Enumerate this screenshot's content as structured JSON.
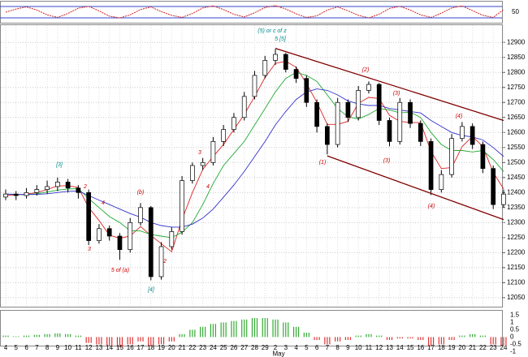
{
  "chart_data": [
    {
      "type": "oscillator",
      "values": [
        50,
        62,
        70,
        58,
        40,
        30,
        45,
        65,
        72,
        55,
        35,
        28,
        40,
        60,
        70,
        52,
        38,
        30,
        45,
        66,
        74,
        60,
        42,
        32,
        48,
        68,
        75,
        62,
        44,
        30,
        36,
        58,
        70,
        55,
        38,
        28,
        42,
        64,
        72,
        58,
        40,
        30,
        46,
        66,
        74,
        56,
        38,
        30,
        60
      ],
      "color": "#cc2222",
      "ylim": [
        10,
        90
      ],
      "yticks": [
        50
      ]
    },
    {
      "type": "candlestick",
      "categories": [
        "4",
        "5",
        "6",
        "7",
        "8",
        "9",
        "10",
        "11",
        "12",
        "13",
        "14",
        "15",
        "16",
        "17",
        "18",
        "19",
        "20",
        "21",
        "22",
        "23",
        "24",
        "25",
        "26",
        "27",
        "28",
        "29",
        "2",
        "3",
        "4",
        "5",
        "6",
        "7",
        "8",
        "9",
        "10",
        "11",
        "12",
        "13",
        "14",
        "15",
        "16",
        "17",
        "18",
        "19",
        "20",
        "21",
        "22",
        "23",
        "24"
      ],
      "month_label": "May",
      "open": [
        12385,
        12395,
        12390,
        12400,
        12410,
        12420,
        12435,
        12415,
        12400,
        12240,
        12280,
        12255,
        12210,
        12300,
        12350,
        12120,
        12220,
        12270,
        12440,
        12490,
        12500,
        12570,
        12610,
        12650,
        12720,
        12790,
        12840,
        12860,
        12810,
        12780,
        12700,
        12620,
        12560,
        12700,
        12650,
        12740,
        12760,
        12640,
        12570,
        12700,
        12630,
        12570,
        12410,
        12460,
        12580,
        12620,
        12560,
        12480,
        12360
      ],
      "high": [
        12410,
        12405,
        12415,
        12425,
        12440,
        12450,
        12445,
        12425,
        12410,
        12295,
        12290,
        12265,
        12315,
        12365,
        12355,
        12235,
        12285,
        12455,
        12500,
        12515,
        12585,
        12625,
        12665,
        12735,
        12805,
        12855,
        12878,
        12865,
        12820,
        12790,
        12710,
        12630,
        12715,
        12710,
        12755,
        12770,
        12765,
        12650,
        12715,
        12710,
        12640,
        12580,
        12475,
        12595,
        12635,
        12630,
        12570,
        12490,
        12410
      ],
      "low": [
        12375,
        12375,
        12380,
        12390,
        12395,
        12405,
        12400,
        12380,
        12225,
        12230,
        12240,
        12176,
        12200,
        12290,
        12108,
        12110,
        12210,
        12260,
        12430,
        12475,
        12490,
        12555,
        12600,
        12640,
        12710,
        12780,
        12825,
        12800,
        12765,
        12685,
        12600,
        12527,
        12550,
        12635,
        12640,
        12730,
        12625,
        12554,
        12560,
        12615,
        12555,
        12392,
        12400,
        12450,
        12570,
        12545,
        12465,
        12345,
        12350
      ],
      "close": [
        12395,
        12390,
        12400,
        12410,
        12420,
        12435,
        12415,
        12400,
        12240,
        12280,
        12255,
        12210,
        12300,
        12350,
        12120,
        12220,
        12270,
        12440,
        12490,
        12500,
        12570,
        12610,
        12650,
        12720,
        12790,
        12840,
        12860,
        12810,
        12780,
        12700,
        12620,
        12560,
        12700,
        12650,
        12740,
        12760,
        12640,
        12570,
        12700,
        12630,
        12570,
        12410,
        12460,
        12580,
        12620,
        12560,
        12480,
        12360,
        12395
      ],
      "series": [
        {
          "color": "#dd2222",
          "values": [
            12390,
            12392,
            12395,
            12400,
            12410,
            12422,
            12423,
            12417,
            12350,
            12307,
            12258,
            12248,
            12255,
            12287,
            12257,
            12230,
            12203,
            12310,
            12400,
            12477,
            12520,
            12560,
            12610,
            12660,
            12720,
            12783,
            12830,
            12837,
            12817,
            12763,
            12700,
            12627,
            12627,
            12637,
            12697,
            12717,
            12713,
            12657,
            12637,
            12633,
            12633,
            12537,
            12480,
            12483,
            12553,
            12587,
            12553,
            12467,
            12412
          ]
        },
        {
          "color": "#22aa33",
          "values": [
            12395,
            12393,
            12393,
            12396,
            12402,
            12408,
            12412,
            12413,
            12380,
            12350,
            12320,
            12300,
            12273,
            12272,
            12260,
            12255,
            12250,
            12268,
            12300,
            12360,
            12430,
            12490,
            12530,
            12570,
            12625,
            12680,
            12735,
            12780,
            12800,
            12790,
            12770,
            12725,
            12680,
            12652,
            12645,
            12660,
            12680,
            12675,
            12665,
            12668,
            12650,
            12600,
            12560,
            12540,
            12540,
            12535,
            12540,
            12510,
            12470
          ]
        },
        {
          "color": "#3333cc",
          "values": [
            12395,
            12394,
            12393,
            12394,
            12396,
            12400,
            12404,
            12405,
            12390,
            12375,
            12360,
            12345,
            12330,
            12318,
            12300,
            12290,
            12285,
            12285,
            12295,
            12315,
            12345,
            12385,
            12425,
            12470,
            12520,
            12570,
            12625,
            12670,
            12710,
            12735,
            12745,
            12740,
            12725,
            12705,
            12695,
            12690,
            12690,
            12680,
            12675,
            12670,
            12665,
            12640,
            12620,
            12600,
            12590,
            12585,
            12575,
            12550,
            12520
          ]
        }
      ],
      "trend_lines": [
        {
          "color": "#800000",
          "x": [
            26,
            48
          ],
          "values": [
            12880,
            12640
          ]
        },
        {
          "color": "#800000",
          "x": [
            31,
            48
          ],
          "values": [
            12522,
            12310
          ]
        }
      ],
      "annotations": [
        "(5) or c of z",
        "5 [5]",
        "[3]",
        "3",
        "5 of (a)",
        "(b)",
        "[4]",
        "2",
        "4",
        "2",
        "3",
        "4",
        "(1)",
        "(2)",
        "(3)",
        "(3)",
        "(4)",
        "(4)"
      ],
      "ylim": [
        12020,
        12960
      ],
      "yticks": [
        12050,
        12100,
        12150,
        12200,
        12250,
        12300,
        12350,
        12400,
        12450,
        12500,
        12550,
        12600,
        12650,
        12700,
        12750,
        12800,
        12850,
        12900
      ],
      "grid": true
    },
    {
      "type": "histogram-oscillator",
      "values": [
        0.1,
        0.05,
        0.1,
        0.15,
        0.2,
        0.25,
        0.2,
        0.1,
        -0.4,
        -0.5,
        -0.6,
        -0.7,
        -0.5,
        -0.3,
        -0.6,
        -0.5,
        -0.3,
        0.2,
        0.5,
        0.7,
        0.9,
        1.0,
        1.1,
        1.2,
        1.3,
        1.3,
        1.2,
        1.0,
        0.7,
        0.3,
        -0.2,
        -0.5,
        -0.3,
        -0.2,
        0.1,
        0.2,
        0.1,
        -0.2,
        -0.1,
        -0.1,
        -0.2,
        -0.6,
        -0.5,
        -0.2,
        0.1,
        0.2,
        0.1,
        -0.5,
        -0.6
      ],
      "positive_color": "#33aa33",
      "negative_color": "#dd3333",
      "ylim": [
        -1.2,
        1.8
      ],
      "yticks": [
        1.5,
        1,
        0.5,
        0,
        -0.5,
        -1
      ]
    }
  ]
}
